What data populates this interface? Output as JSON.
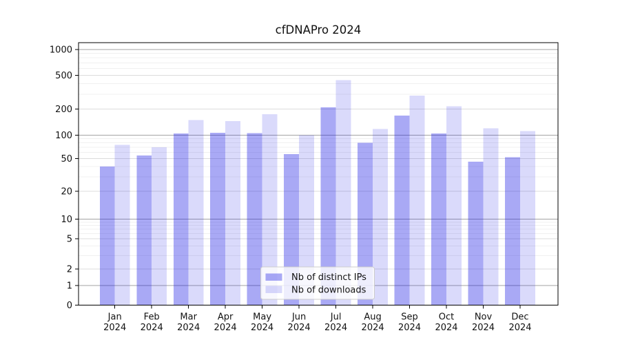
{
  "chart_data": {
    "type": "bar",
    "title": "cfDNAPro 2024",
    "categories": [
      "Jan",
      "Feb",
      "Mar",
      "Apr",
      "May",
      "Jun",
      "Jul",
      "Aug",
      "Sep",
      "Oct",
      "Nov",
      "Dec"
    ],
    "category_year": "2024",
    "series": [
      {
        "name": "Nb of distinct IPs",
        "color": "rgba(30,30,230,0.38)",
        "values": [
          40,
          55,
          105,
          107,
          106,
          57,
          210,
          80,
          168,
          105,
          46,
          52
        ]
      },
      {
        "name": "Nb of downloads",
        "color": "rgba(30,30,230,0.165)",
        "values": [
          75,
          70,
          150,
          145,
          174,
          100,
          437,
          118,
          288,
          216,
          120,
          112
        ]
      }
    ],
    "yscale": "symlog",
    "yticks": [
      0,
      1,
      2,
      5,
      10,
      20,
      50,
      100,
      200,
      500,
      1000
    ],
    "ytick_labels": [
      "0",
      "1",
      "2",
      "5",
      "10",
      "20",
      "50",
      "100",
      "200",
      "500",
      "1000"
    ],
    "ylim": [
      0,
      1200
    ],
    "xlabel": "",
    "ylabel": "",
    "grid": true,
    "legend": {
      "labels": [
        "Nb of distinct IPs",
        "Nb of downloads"
      ],
      "position": "lower center"
    }
  },
  "colors": {
    "major_grid": "#a3a3a3",
    "mid_grid": "#dcdcdc",
    "minor_grid": "#f0f0f0",
    "spine": "#000000",
    "text": "#111111",
    "legend_border": "#cccccc",
    "legend_bg": "#ffffff"
  }
}
